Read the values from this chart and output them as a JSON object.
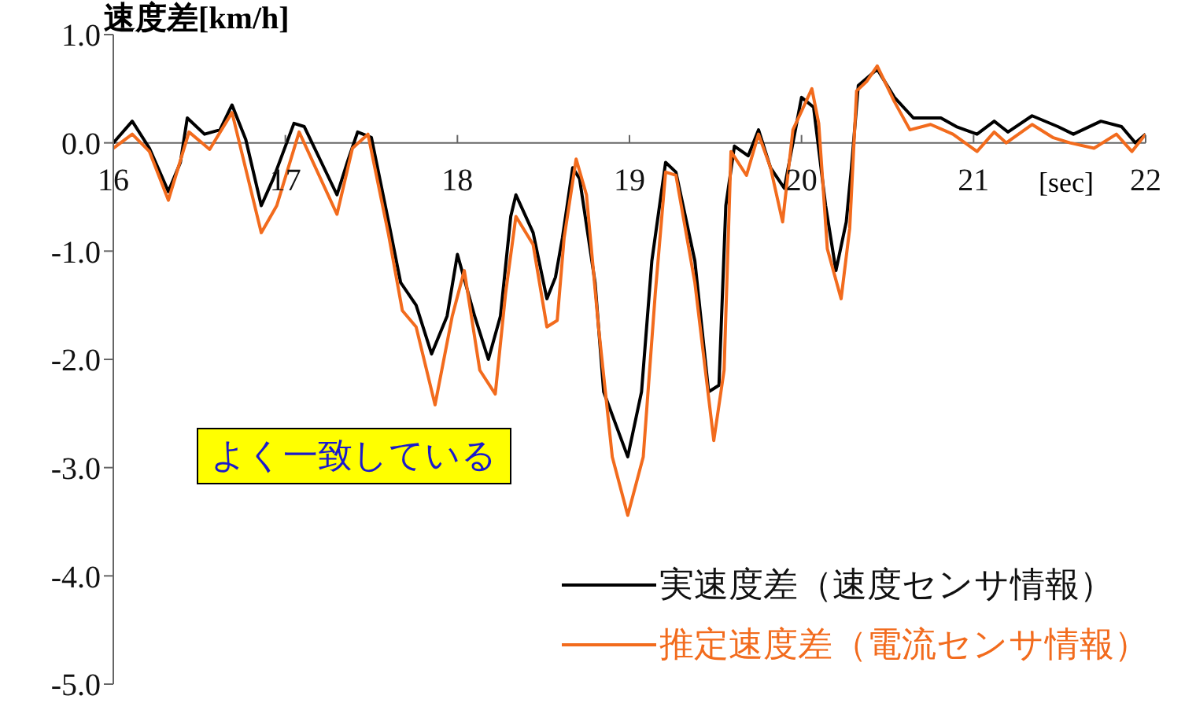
{
  "chart_data": {
    "type": "line",
    "ylabel": "速度差[km/h]",
    "xlabel": "[sec]",
    "xlim": [
      16,
      22
    ],
    "xticks": [
      16,
      17,
      18,
      19,
      20,
      21,
      22
    ],
    "ylim": [
      -5,
      1
    ],
    "yticks": [
      {
        "value": 1,
        "label": "1.0"
      },
      {
        "value": 0,
        "label": "0.0"
      },
      {
        "value": -1,
        "label": "-1.0"
      },
      {
        "value": -2,
        "label": "-2.0"
      },
      {
        "value": -3,
        "label": "-3.0"
      },
      {
        "value": -4,
        "label": "-4.0"
      },
      {
        "value": -5,
        "label": "-5.0"
      }
    ],
    "legend": "bottom right",
    "marker": "none",
    "line_style": "solid",
    "annotations": [
      "よく一致している"
    ],
    "series": [
      {
        "name": "実速度差（速度センサ情報）",
        "color": "#000000",
        "x": [
          16.0,
          16.11,
          16.21,
          16.32,
          16.39,
          16.43,
          16.53,
          16.62,
          16.69,
          16.77,
          16.86,
          16.93,
          17.05,
          17.11,
          17.3,
          17.36,
          17.42,
          17.5,
          17.6,
          17.67,
          17.76,
          17.85,
          17.94,
          18.0,
          18.1,
          18.18,
          18.25,
          18.31,
          18.34,
          18.44,
          18.52,
          18.57,
          18.61,
          18.67,
          18.71,
          18.8,
          18.85,
          18.99,
          19.07,
          19.13,
          19.21,
          19.27,
          19.38,
          19.46,
          19.52,
          19.56,
          19.61,
          19.69,
          19.75,
          19.82,
          19.9,
          20.0,
          20.07,
          20.14,
          20.2,
          20.26,
          20.29,
          20.33,
          20.44,
          20.54,
          20.65,
          20.81,
          20.9,
          21.02,
          21.12,
          21.2,
          21.34,
          21.49,
          21.58,
          21.74,
          21.86,
          21.94,
          22.0
        ],
        "values": [
          0.0,
          0.2,
          -0.05,
          -0.45,
          -0.18,
          0.23,
          0.08,
          0.12,
          0.35,
          0.03,
          -0.58,
          -0.33,
          0.18,
          0.15,
          -0.48,
          -0.18,
          0.1,
          0.05,
          -0.73,
          -1.29,
          -1.5,
          -1.95,
          -1.6,
          -1.03,
          -1.6,
          -2.0,
          -1.6,
          -0.68,
          -0.48,
          -0.83,
          -1.44,
          -1.24,
          -0.88,
          -0.23,
          -0.33,
          -1.29,
          -2.3,
          -2.9,
          -2.3,
          -1.09,
          -0.18,
          -0.27,
          -1.09,
          -2.3,
          -2.24,
          -0.58,
          -0.03,
          -0.12,
          0.12,
          -0.23,
          -0.42,
          0.42,
          0.33,
          -0.58,
          -1.18,
          -0.73,
          -0.23,
          0.53,
          0.68,
          0.42,
          0.23,
          0.23,
          0.15,
          0.08,
          0.2,
          0.1,
          0.25,
          0.15,
          0.08,
          0.2,
          0.15,
          0.0,
          0.08
        ]
      },
      {
        "name": "推定速度差（電流センサ情報）",
        "color": "#f26b1d",
        "x": [
          16.0,
          16.11,
          16.21,
          16.32,
          16.44,
          16.56,
          16.69,
          16.86,
          16.95,
          17.08,
          17.3,
          17.39,
          17.48,
          17.6,
          17.68,
          17.76,
          17.87,
          17.97,
          18.04,
          18.13,
          18.22,
          18.28,
          18.34,
          18.44,
          18.52,
          18.58,
          18.62,
          18.69,
          18.75,
          18.82,
          18.9,
          18.99,
          19.08,
          19.15,
          19.21,
          19.27,
          19.38,
          19.49,
          19.55,
          19.59,
          19.68,
          19.75,
          19.82,
          19.89,
          19.95,
          20.06,
          20.1,
          20.15,
          20.23,
          20.28,
          20.32,
          20.38,
          20.44,
          20.54,
          20.63,
          20.75,
          20.88,
          21.02,
          21.12,
          21.19,
          21.34,
          21.46,
          21.56,
          21.7,
          21.83,
          21.92,
          22.0
        ],
        "values": [
          -0.05,
          0.08,
          -0.08,
          -0.53,
          0.1,
          -0.06,
          0.28,
          -0.83,
          -0.58,
          0.1,
          -0.66,
          -0.05,
          0.08,
          -0.85,
          -1.55,
          -1.7,
          -2.42,
          -1.6,
          -1.18,
          -2.1,
          -2.32,
          -1.39,
          -0.68,
          -0.94,
          -1.7,
          -1.64,
          -0.88,
          -0.15,
          -0.48,
          -1.7,
          -2.9,
          -3.44,
          -2.9,
          -1.39,
          -0.27,
          -0.3,
          -1.29,
          -2.75,
          -2.1,
          -0.08,
          -0.3,
          0.08,
          -0.23,
          -0.73,
          0.12,
          0.5,
          0.18,
          -0.98,
          -1.44,
          -0.79,
          0.48,
          0.57,
          0.71,
          0.38,
          0.12,
          0.17,
          0.08,
          -0.08,
          0.1,
          0.0,
          0.17,
          0.05,
          0.0,
          -0.05,
          0.08,
          -0.08,
          0.08
        ]
      }
    ]
  }
}
